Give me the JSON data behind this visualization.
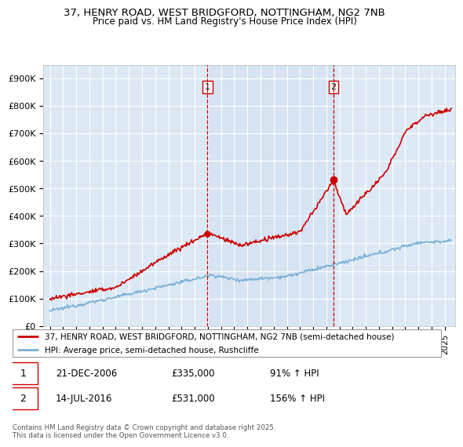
{
  "title_line1": "37, HENRY ROAD, WEST BRIDGFORD, NOTTINGHAM, NG2 7NB",
  "title_line2": "Price paid vs. HM Land Registry's House Price Index (HPI)",
  "bg_color": "#dce9f5",
  "outer_bg_color": "#ffffff",
  "red_line_label": "37, HENRY ROAD, WEST BRIDGFORD, NOTTINGHAM, NG2 7NB (semi-detached house)",
  "blue_line_label": "HPI: Average price, semi-detached house, Rushcliffe",
  "annotation1_label": "1",
  "annotation1_date": "21-DEC-2006",
  "annotation1_price": "£335,000",
  "annotation1_hpi": "91% ↑ HPI",
  "annotation2_label": "2",
  "annotation2_date": "14-JUL-2016",
  "annotation2_price": "£531,000",
  "annotation2_hpi": "156% ↑ HPI",
  "footer": "Contains HM Land Registry data © Crown copyright and database right 2025.\nThis data is licensed under the Open Government Licence v3.0.",
  "ylim": [
    0,
    950000
  ],
  "yticks": [
    0,
    100000,
    200000,
    300000,
    400000,
    500000,
    600000,
    700000,
    800000,
    900000
  ],
  "ytick_labels": [
    "£0",
    "£100K",
    "£200K",
    "£300K",
    "£400K",
    "£500K",
    "£600K",
    "£700K",
    "£800K",
    "£900K"
  ],
  "sale1_x": 2006.97,
  "sale1_y": 335000,
  "sale2_x": 2016.54,
  "sale2_y": 531000,
  "red_color": "#cc0000",
  "blue_color": "#7bafd4",
  "vline_color": "#cc0000",
  "shade_color": "#c8daf0",
  "grid_color": "#ffffff",
  "xmin": 1994.5,
  "xmax": 2025.8
}
